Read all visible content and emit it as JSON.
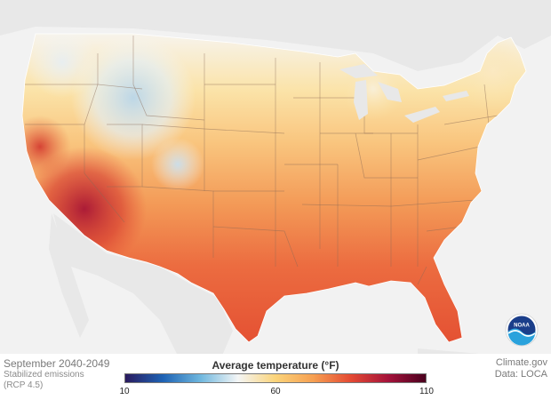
{
  "legend": {
    "title": "Average temperature (°F)",
    "min_label": "10",
    "mid_label": "60",
    "max_label": "110",
    "range": [
      10,
      110
    ],
    "colors": [
      "#2a1a5e",
      "#1d62b4",
      "#6fb7de",
      "#f4f6f6",
      "#fbd47a",
      "#f6a052",
      "#e44a33",
      "#a5123a",
      "#4a001e"
    ]
  },
  "info": {
    "period": "September 2040-2049",
    "scenario_line1": "Stabilized emissions",
    "scenario_line2": "(RCP 4.5)"
  },
  "credits": {
    "source": "Climate.gov",
    "data": "Data: LOCA"
  },
  "logo": {
    "text": "NOAA",
    "icon": "noaa-logo-icon"
  },
  "colors": {
    "background": "#f2f2f2",
    "land_neighbors": "#e6e6e6",
    "state_border": "#8a6a55"
  }
}
